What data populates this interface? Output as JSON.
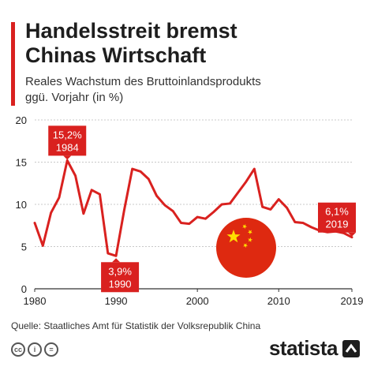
{
  "title_lines": [
    "Handelsstreit bremst",
    "Chinas Wirtschaft"
  ],
  "subtitle_lines": [
    "Reales Wachstum des Bruttoinlandsprodukts",
    "ggü. Vorjahr (in %)"
  ],
  "source": "Quelle: Staatliches Amt für Statistik der Volksrepublik China",
  "brand": "statista",
  "license_icons": [
    "cc-icon",
    "by-icon",
    "nd-icon"
  ],
  "colors": {
    "accent": "#d9211f",
    "line": "#d9211f",
    "flag_red": "#de2910",
    "flag_star": "#ffde00",
    "grid": "#c8c8c8",
    "text": "#1e1e1e"
  },
  "chart_data": {
    "type": "line",
    "title": "Handelsstreit bremst Chinas Wirtschaft",
    "subtitle": "Reales Wachstum des Bruttoinlandsprodukts ggü. Vorjahr (in %)",
    "xlabel": "",
    "ylabel": "",
    "xlim": [
      1980,
      2019
    ],
    "ylim": [
      0,
      20
    ],
    "yticks": [
      0,
      5,
      10,
      15,
      20
    ],
    "xticks": [
      1980,
      1990,
      2000,
      2010,
      2019
    ],
    "grid": true,
    "x": [
      1980,
      1981,
      1982,
      1983,
      1984,
      1985,
      1986,
      1987,
      1988,
      1989,
      1990,
      1991,
      1992,
      1993,
      1994,
      1995,
      1996,
      1997,
      1998,
      1999,
      2000,
      2001,
      2002,
      2003,
      2004,
      2005,
      2006,
      2007,
      2008,
      2009,
      2010,
      2011,
      2012,
      2013,
      2014,
      2015,
      2016,
      2017,
      2018,
      2019
    ],
    "series": [
      {
        "values": [
          7.8,
          5.1,
          9.0,
          10.8,
          15.2,
          13.4,
          8.9,
          11.7,
          11.2,
          4.2,
          3.9,
          9.3,
          14.2,
          13.9,
          13.0,
          11.0,
          9.9,
          9.2,
          7.8,
          7.7,
          8.5,
          8.3,
          9.1,
          10.0,
          10.1,
          11.4,
          12.7,
          14.2,
          9.7,
          9.4,
          10.6,
          9.6,
          7.9,
          7.8,
          7.3,
          6.9,
          6.7,
          6.8,
          6.6,
          6.1
        ]
      }
    ],
    "annotations": [
      {
        "value": "15,2%",
        "year": "1984",
        "x": 1984,
        "y": 15.2
      },
      {
        "value": "3,9%",
        "year": "1990",
        "x": 1990,
        "y": 3.9
      },
      {
        "value": "6,1%",
        "year": "2019",
        "x": 2019,
        "y": 6.1
      }
    ]
  }
}
